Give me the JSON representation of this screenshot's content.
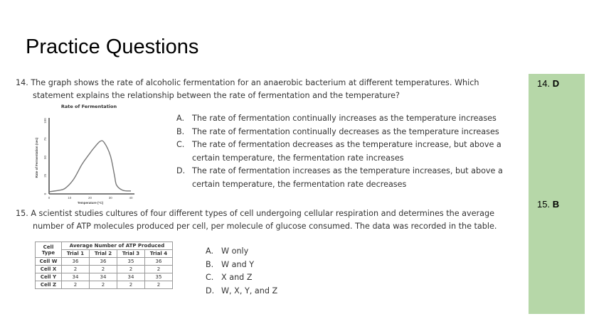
{
  "title": "Practice Questions",
  "q14": {
    "line1": "14. The graph shows the rate of alcoholic fermentation for an anaerobic bacterium at different temperatures. Which",
    "line2": "statement explains the relationship between the rate of fermentation and the temperature?",
    "options": [
      {
        "letter": "A.",
        "text": "The rate of fermentation continually increases as the temperature increases"
      },
      {
        "letter": "B.",
        "text": "The rate of fermentation continually decreases as the temperature increases"
      },
      {
        "letter": "C.",
        "text": "The rate of fermentation decreases as the temperature increase, but above a certain temperature, the fermentation rate increases"
      },
      {
        "letter": "D.",
        "text": "The rate of fermentation increases as the temperature increases, but above a certain temperature, the fermentation rate decreases"
      }
    ]
  },
  "chart_data": {
    "type": "line",
    "title": "Rate of Fermentation",
    "xlabel": "Temperature (°C)",
    "ylabel": "Rate of Fermentation (sec)",
    "xlim": [
      0,
      40
    ],
    "ylim": [
      0,
      100
    ],
    "xticks": [
      "0",
      "10",
      "20",
      "30",
      "40"
    ],
    "yticks": [
      "0",
      "25",
      "50",
      "75",
      "100"
    ],
    "grid": false,
    "x": [
      0,
      5,
      8,
      12,
      16,
      19,
      22,
      25,
      27,
      30,
      32,
      33,
      36,
      40
    ],
    "y": [
      3,
      5,
      8,
      20,
      40,
      52,
      63,
      72,
      70,
      52,
      25,
      12,
      5,
      4
    ]
  },
  "q15": {
    "line1": "15. A scientist studies cultures of four different types of cell undergoing cellular respiration and determines the average",
    "line2": "number of ATP molecules produced per cell, per molecule of glucose consumed. The data was recorded in the table.",
    "table": {
      "corner": "Cell Type",
      "group_header": "Average Number of ATP Produced",
      "columns": [
        "Trial 1",
        "Trial 2",
        "Trial 3",
        "Trial 4"
      ],
      "rows": [
        {
          "label": "Cell W",
          "values": [
            "36",
            "36",
            "35",
            "36"
          ]
        },
        {
          "label": "Cell X",
          "values": [
            "2",
            "2",
            "2",
            "2"
          ]
        },
        {
          "label": "Cell Y",
          "values": [
            "34",
            "34",
            "34",
            "35"
          ]
        },
        {
          "label": "Cell Z",
          "values": [
            "2",
            "2",
            "2",
            "2"
          ]
        }
      ]
    },
    "options": [
      {
        "letter": "A.",
        "text": "W only"
      },
      {
        "letter": "B.",
        "text": "W and Y"
      },
      {
        "letter": "C.",
        "text": "X and Z"
      },
      {
        "letter": "D.",
        "text": "W, X, Y, and Z"
      }
    ]
  },
  "answers": [
    {
      "num": "14.",
      "letter": "D"
    },
    {
      "num": "15.",
      "letter": "B"
    }
  ],
  "colors": {
    "answer_panel": "#b6d7a8"
  }
}
